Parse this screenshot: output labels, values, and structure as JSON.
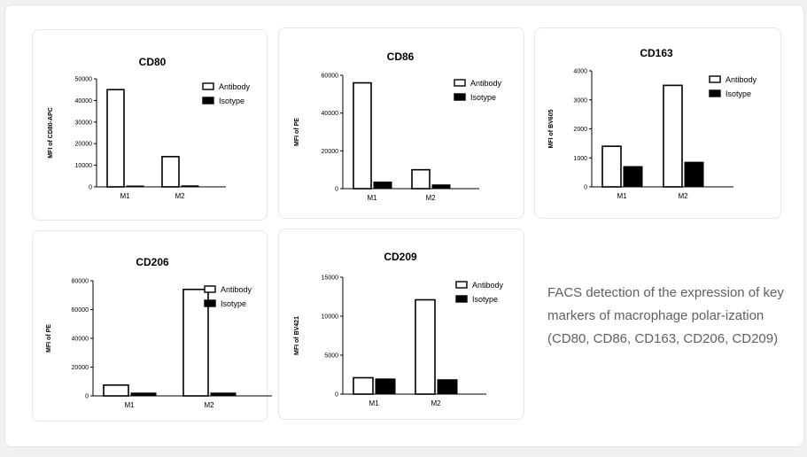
{
  "caption": "FACS detection of the expression of key markers of macrophage polar-ization (CD80, CD86, CD163, CD206, CD209)",
  "colors": {
    "antibody_fill": "#ffffff",
    "isotype_fill": "#000000",
    "bar_stroke": "#000000"
  },
  "chart_data": [
    {
      "type": "bar",
      "title": "CD80",
      "ylabel": "MFI of CD80-APC",
      "categories": [
        "M1",
        "M2"
      ],
      "ylim": [
        0,
        50000
      ],
      "yticks": [
        0,
        10000,
        20000,
        30000,
        40000,
        50000
      ],
      "series": [
        {
          "name": "Antibody",
          "values": [
            45000,
            14000
          ]
        },
        {
          "name": "Isotype",
          "values": [
            300,
            500
          ]
        }
      ],
      "legend": "top-right"
    },
    {
      "type": "bar",
      "title": "CD86",
      "ylabel": "MFI of PE",
      "categories": [
        "M1",
        "M2"
      ],
      "ylim": [
        0,
        60000
      ],
      "yticks": [
        0,
        20000,
        40000,
        60000
      ],
      "series": [
        {
          "name": "Antibody",
          "values": [
            56000,
            10000
          ]
        },
        {
          "name": "Isotype",
          "values": [
            3500,
            2000
          ]
        }
      ],
      "legend": "top-right"
    },
    {
      "type": "bar",
      "title": "CD163",
      "ylabel": "MFI of BV605",
      "categories": [
        "M1",
        "M2"
      ],
      "ylim": [
        0,
        4000
      ],
      "yticks": [
        0,
        1000,
        2000,
        3000,
        4000
      ],
      "series": [
        {
          "name": "Antibody",
          "values": [
            1400,
            3500
          ]
        },
        {
          "name": "Isotype",
          "values": [
            700,
            850
          ]
        }
      ],
      "legend": "top-right"
    },
    {
      "type": "bar",
      "title": "CD206",
      "ylabel": "MFI of PE",
      "categories": [
        "M1",
        "M2"
      ],
      "ylim": [
        0,
        80000
      ],
      "yticks": [
        0,
        20000,
        40000,
        60000,
        80000
      ],
      "series": [
        {
          "name": "Antibody",
          "values": [
            7500,
            74000
          ]
        },
        {
          "name": "Isotype",
          "values": [
            2000,
            2000
          ]
        }
      ],
      "legend": "top-right"
    },
    {
      "type": "bar",
      "title": "CD209",
      "ylabel": "MFI of BV421",
      "categories": [
        "M1",
        "M2"
      ],
      "ylim": [
        0,
        15000
      ],
      "yticks": [
        0,
        5000,
        10000,
        15000
      ],
      "series": [
        {
          "name": "Antibody",
          "values": [
            2100,
            12100
          ]
        },
        {
          "name": "Isotype",
          "values": [
            1950,
            1850
          ]
        }
      ],
      "legend": "top-right"
    }
  ]
}
